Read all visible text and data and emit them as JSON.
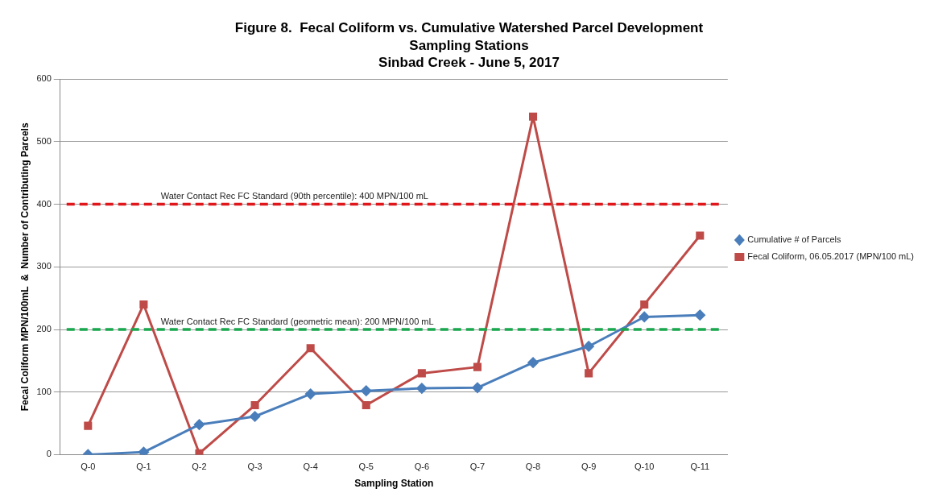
{
  "chart_data": {
    "type": "line",
    "title": "Figure 8.  Fecal Coliform vs. Cumulative Watershed Parcel Development",
    "subtitle": "Sampling Stations\nSinbad Creek - June 5, 2017",
    "xlabel": "Sampling Station",
    "ylabel": "Fecal Coliform MPN/100mL  &  Number of Contributing Parcels",
    "categories": [
      "Q-0",
      "Q-1",
      "Q-2",
      "Q-3",
      "Q-4",
      "Q-5",
      "Q-6",
      "Q-7",
      "Q-8",
      "Q-9",
      "Q-10",
      "Q-11"
    ],
    "series": [
      {
        "name": "Cumulative # of Parcels",
        "color": "#4a7ebb",
        "marker": "diamond",
        "values": [
          0,
          4,
          48,
          61,
          97,
          102,
          106,
          107,
          147,
          173,
          220,
          223
        ]
      },
      {
        "name": "Fecal Coliform, 06.05.2017 (MPN/100 mL)",
        "color": "#be4b48",
        "marker": "square",
        "values": [
          46,
          240,
          2,
          79,
          170,
          79,
          130,
          140,
          540,
          130,
          240,
          350
        ]
      }
    ],
    "ylim": [
      0,
      600
    ],
    "yticks": [
      0,
      100,
      200,
      300,
      400,
      500,
      600
    ],
    "ref_lines": [
      {
        "axis": "y",
        "value": 400,
        "label": "Water Contact Rec FC Standard (90th percentile): 400 MPN/100 mL",
        "color": "#e0161a",
        "line_style": "dashed"
      },
      {
        "axis": "y",
        "value": 200,
        "label": "Water Contact Rec FC Standard (geometric mean): 200 MPN/100 mL",
        "color": "#19a84e",
        "line_style": "dashed"
      }
    ],
    "grid": "y",
    "legend": "right",
    "line_style": "solid"
  }
}
